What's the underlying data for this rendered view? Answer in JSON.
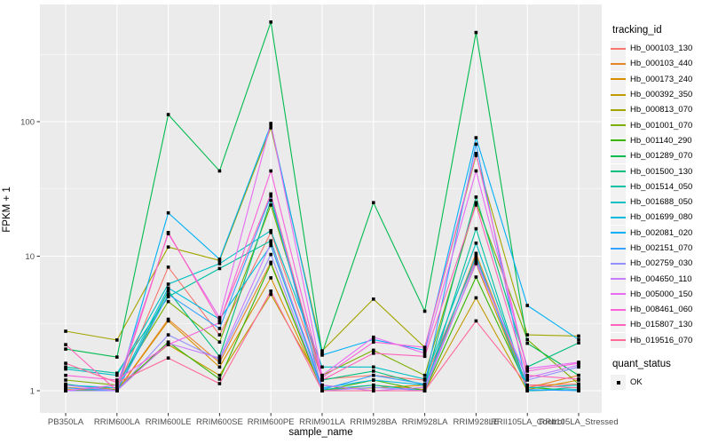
{
  "figure": {
    "background": "#FFFFFF",
    "panel_background": "#EBEBEB",
    "gridline_color": "#FFFFFF",
    "axis_text_color": "#4D4D4D",
    "tick_mark_color": "#333333"
  },
  "axes": {
    "x_title": "sample_name",
    "y_title": "FPKM + 1"
  },
  "legend": {
    "tracking_title": "tracking_id",
    "quant_title": "quant_status",
    "quant_items": [
      {
        "label": "OK",
        "shape": "filled-square",
        "color": "#000000"
      }
    ]
  },
  "chart_data": {
    "type": "line",
    "title": "",
    "xlabel": "sample_name",
    "ylabel": "FPKM + 1",
    "y_scale": "log10",
    "ylim": [
      1,
      740
    ],
    "y_major_ticks": [
      1,
      10,
      100
    ],
    "y_minor_ticks": [
      3.162,
      31.62,
      316.2
    ],
    "grid": true,
    "legend_position": "right",
    "point_shape": "filled-square",
    "point_color": "#000000",
    "categories": [
      "PB350LA",
      "RRIM600LA",
      "RRIM600LE",
      "RRIM600SE",
      "RRIM600PE",
      "RRIM901LA",
      "RRIM928BA",
      "RRIM928LA",
      "RRIM928LE",
      "RRII105LA_Control",
      "RRII105LA_Stressed"
    ],
    "series": [
      {
        "name": "Hb_000103_130",
        "color": "#F8766D",
        "values": [
          1.1,
          1.02,
          8.3,
          2.6,
          15.0,
          1.22,
          1.3,
          1.2,
          9.5,
          1.1,
          1.12
        ]
      },
      {
        "name": "Hb_000103_440",
        "color": "#E88526",
        "values": [
          1.02,
          1.0,
          3.4,
          1.62,
          9.0,
          1.0,
          1.1,
          1.02,
          10.5,
          1.05,
          1.3
        ]
      },
      {
        "name": "Hb_000173_240",
        "color": "#D89000",
        "values": [
          1.06,
          1.0,
          3.3,
          1.5,
          6.9,
          1.02,
          1.05,
          1.1,
          8.8,
          1.02,
          1.2
        ]
      },
      {
        "name": "Hb_000392_350",
        "color": "#C09B00",
        "values": [
          1.0,
          1.06,
          2.2,
          1.3,
          5.2,
          1.1,
          1.0,
          1.0,
          4.9,
          1.0,
          1.02
        ]
      },
      {
        "name": "Hb_000813_070",
        "color": "#A3A500",
        "values": [
          2.77,
          2.38,
          11.7,
          9.3,
          90,
          1.98,
          4.8,
          2.1,
          56,
          2.6,
          2.55
        ]
      },
      {
        "name": "Hb_001001_070",
        "color": "#7CAE00",
        "values": [
          1.2,
          1.1,
          4.6,
          2.3,
          24,
          1.3,
          2.0,
          1.3,
          25,
          2.4,
          1.12
        ]
      },
      {
        "name": "Hb_001140_290",
        "color": "#39B600",
        "values": [
          1.0,
          1.02,
          2.3,
          1.22,
          8.8,
          1.0,
          1.2,
          1.0,
          7.0,
          1.06,
          1.0
        ]
      },
      {
        "name": "Hb_001289_070",
        "color": "#00BB4E",
        "values": [
          2.04,
          1.78,
          113,
          43,
          550,
          1.9,
          25,
          3.9,
          460,
          2.25,
          1.3
        ]
      },
      {
        "name": "Hb_001500_130",
        "color": "#00BF7D",
        "values": [
          1.12,
          1.0,
          5.5,
          1.8,
          26,
          1.2,
          1.4,
          1.1,
          27.5,
          1.5,
          2.27
        ]
      },
      {
        "name": "Hb_001514_050",
        "color": "#00C1A3",
        "values": [
          1.5,
          1.35,
          5.0,
          8.1,
          13.0,
          1.02,
          1.1,
          1.0,
          16.0,
          1.0,
          1.06
        ]
      },
      {
        "name": "Hb_001688_050",
        "color": "#00BFC4",
        "values": [
          1.45,
          1.3,
          6.2,
          8.8,
          15.5,
          1.5,
          1.5,
          1.22,
          12.5,
          1.05,
          1.1
        ]
      },
      {
        "name": "Hb_001699_080",
        "color": "#00BAE0",
        "values": [
          1.1,
          1.05,
          5.8,
          3.4,
          12.0,
          1.05,
          1.2,
          1.1,
          10.0,
          1.0,
          1.02
        ]
      },
      {
        "name": "Hb_002081_020",
        "color": "#00B0F6",
        "values": [
          1.0,
          1.0,
          21,
          9.5,
          95,
          1.84,
          2.4,
          2.0,
          76,
          4.3,
          2.4
        ]
      },
      {
        "name": "Hb_002151_070",
        "color": "#35A2FF",
        "values": [
          1.05,
          1.0,
          5.2,
          2.9,
          28,
          1.02,
          1.3,
          1.12,
          68,
          1.02,
          1.0
        ]
      },
      {
        "name": "Hb_002759_030",
        "color": "#9590FF",
        "values": [
          1.0,
          1.0,
          2.6,
          1.7,
          10.3,
          1.0,
          1.06,
          1.0,
          9.2,
          1.2,
          1.5
        ]
      },
      {
        "name": "Hb_004650_110",
        "color": "#C77CFF",
        "values": [
          1.1,
          1.0,
          2.25,
          1.75,
          12.5,
          1.1,
          1.0,
          1.06,
          8.9,
          1.25,
          1.55
        ]
      },
      {
        "name": "Hb_005000_150",
        "color": "#E76BF3",
        "values": [
          1.0,
          1.1,
          14.7,
          3.5,
          97,
          1.3,
          2.5,
          1.9,
          43,
          1.46,
          1.63
        ]
      },
      {
        "name": "Hb_008461_060",
        "color": "#FA62DB",
        "values": [
          1.3,
          1.2,
          2.2,
          3.2,
          43,
          1.25,
          2.3,
          2.1,
          58,
          1.4,
          1.6
        ]
      },
      {
        "name": "Hb_015807_130",
        "color": "#FF62BC",
        "values": [
          2.2,
          1.0,
          15.0,
          3.3,
          29,
          1.2,
          1.9,
          1.8,
          24,
          1.3,
          1.22
        ]
      },
      {
        "name": "Hb_019516_070",
        "color": "#FF6A98",
        "values": [
          1.6,
          1.15,
          1.75,
          1.13,
          5.5,
          1.0,
          1.0,
          1.0,
          3.3,
          1.1,
          1.05
        ]
      }
    ]
  }
}
